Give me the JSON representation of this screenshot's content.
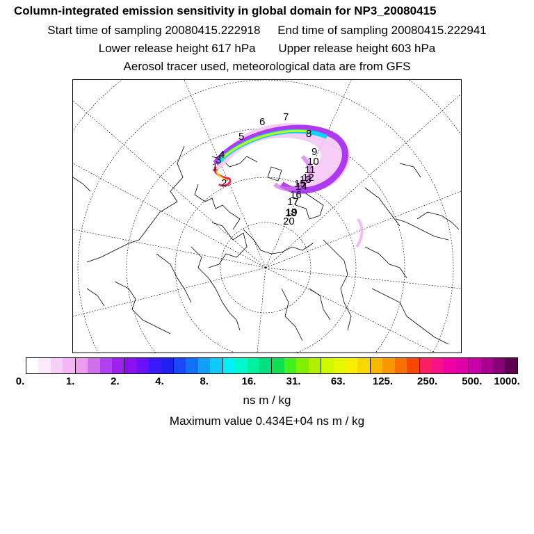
{
  "header": {
    "title": "Column-integrated emission sensitivity in global domain for NP3_20080415",
    "start_time": "Start time of sampling 20080415.222918",
    "end_time": "End time of sampling 20080415.222941",
    "lower_height": "Lower release height  617 hPa",
    "upper_height": "Upper release height  603 hPa",
    "tracer_note": "Aerosol tracer used, meteorological data are from GFS"
  },
  "map": {
    "day_labels": [
      "1",
      "2",
      "3",
      "4",
      "5",
      "6",
      "7",
      "8",
      "9",
      "10",
      "11",
      "12",
      "13",
      "14",
      "15",
      "16",
      "17",
      "18",
      "19",
      "20"
    ]
  },
  "colorbar": {
    "colors": [
      "#ffffff",
      "#fbe8fb",
      "#f7d0f7",
      "#f3b8f3",
      "#ef9cef",
      "#d070e8",
      "#b040f0",
      "#a020f0",
      "#8a10f0",
      "#6a10f8",
      "#3a18f8",
      "#2020f0",
      "#1848f8",
      "#1070f8",
      "#10a0f8",
      "#10c8f8",
      "#00f0f8",
      "#00f8d0",
      "#00f0a0",
      "#00e080",
      "#10e050",
      "#40f020",
      "#80f000",
      "#b0f000",
      "#d0f800",
      "#e8f800",
      "#f8f000",
      "#f8d800",
      "#f8b800",
      "#f89800",
      "#f87000",
      "#f84800",
      "#f82060",
      "#f81088",
      "#f000a0",
      "#e000a8",
      "#c800a8",
      "#a80090",
      "#880078",
      "#600050"
    ],
    "tick_labels": [
      "0.",
      "1.",
      "2.",
      "4.",
      "8.",
      "16.",
      "31.",
      "63.",
      "125.",
      "250.",
      "500.",
      "1000."
    ],
    "units": "ns m / kg"
  },
  "footer": {
    "max_value": "Maximum value  0.434E+04 ns m / kg"
  }
}
